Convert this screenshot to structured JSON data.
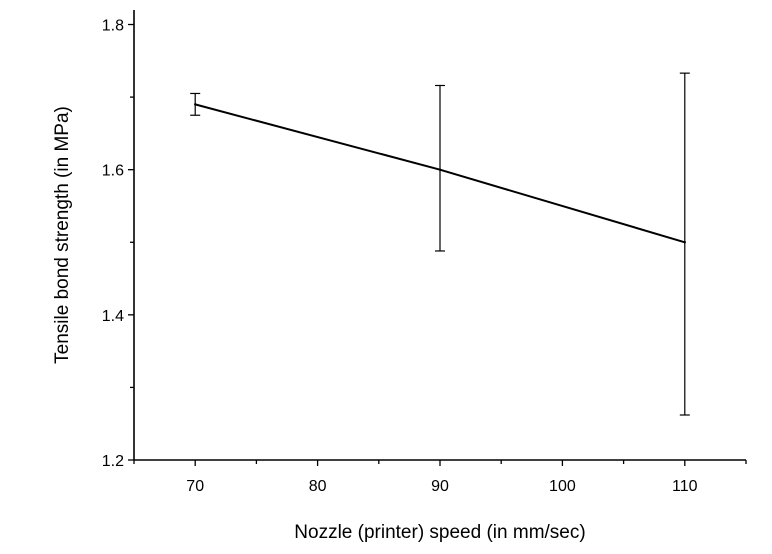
{
  "chart_data": {
    "type": "line",
    "title": "",
    "xlabel": "Nozzle (printer) speed (in mm/sec)",
    "ylabel": "Tensile bond strength (in MPa)",
    "xlim": [
      65,
      115
    ],
    "ylim": [
      1.2,
      1.82
    ],
    "x_ticks": [
      70,
      80,
      90,
      100,
      110
    ],
    "x_tick_labels": [
      "70",
      "80",
      "90",
      "100",
      "110"
    ],
    "y_ticks": [
      1.2,
      1.4,
      1.6,
      1.8
    ],
    "y_tick_labels": [
      "1.2",
      "1.4",
      "1.6",
      "1.8"
    ],
    "grid": false,
    "legend": "none",
    "series": [
      {
        "x": [
          70,
          90,
          110
        ],
        "y": [
          1.69,
          1.6,
          1.5
        ],
        "error_low": [
          1.675,
          1.488,
          1.262
        ],
        "error_high": [
          1.705,
          1.716,
          1.733
        ],
        "color": "#000000"
      }
    ]
  }
}
